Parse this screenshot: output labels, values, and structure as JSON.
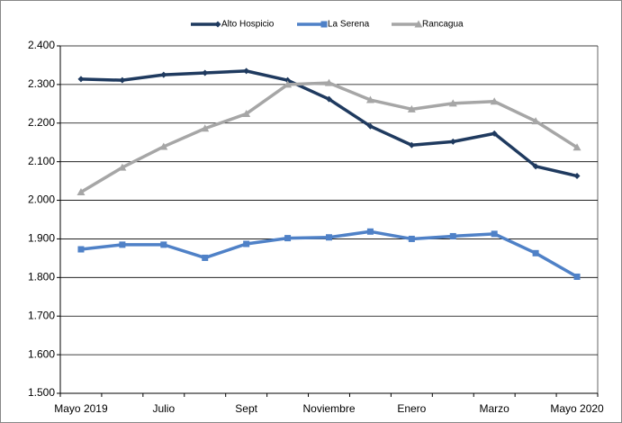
{
  "chart_data": {
    "type": "line",
    "categories": [
      "Mayo 2019",
      null,
      "Julio",
      null,
      "Sept",
      null,
      "Noviembre",
      null,
      "Enero",
      null,
      "Marzo",
      null,
      "Mayo 2020"
    ],
    "series": [
      {
        "name": "Alto Hospicio",
        "color": "#1f3a5f",
        "marker": "diamond",
        "values": [
          2314,
          2311,
          2325,
          2330,
          2335,
          2311,
          2262,
          2192,
          2143,
          2152,
          2173,
          2088,
          2063
        ]
      },
      {
        "name": "La Serena",
        "color": "#4f81c7",
        "marker": "square",
        "values": [
          1873,
          1885,
          1885,
          1851,
          1887,
          1902,
          1904,
          1919,
          1900,
          1907,
          1913,
          1863,
          1802
        ]
      },
      {
        "name": "Rancagua",
        "color": "#a6a6a6",
        "marker": "triangle",
        "values": [
          2021,
          2085,
          2139,
          2186,
          2224,
          2300,
          2304,
          2260,
          2236,
          2251,
          2256,
          2205,
          2137
        ]
      }
    ],
    "ylim": [
      1500,
      2400
    ],
    "yticks": [
      {
        "value": 1500,
        "label": "1.500"
      },
      {
        "value": 1600,
        "label": "1.600"
      },
      {
        "value": 1700,
        "label": "1.700"
      },
      {
        "value": 1800,
        "label": "1.800"
      },
      {
        "value": 1900,
        "label": "1.900"
      },
      {
        "value": 2000,
        "label": "2.000"
      },
      {
        "value": 2100,
        "label": "2.100"
      },
      {
        "value": 2200,
        "label": "2.200"
      },
      {
        "value": 2300,
        "label": "2.300"
      },
      {
        "value": 2400,
        "label": "2.400"
      }
    ],
    "grid": true,
    "legend": "top"
  }
}
